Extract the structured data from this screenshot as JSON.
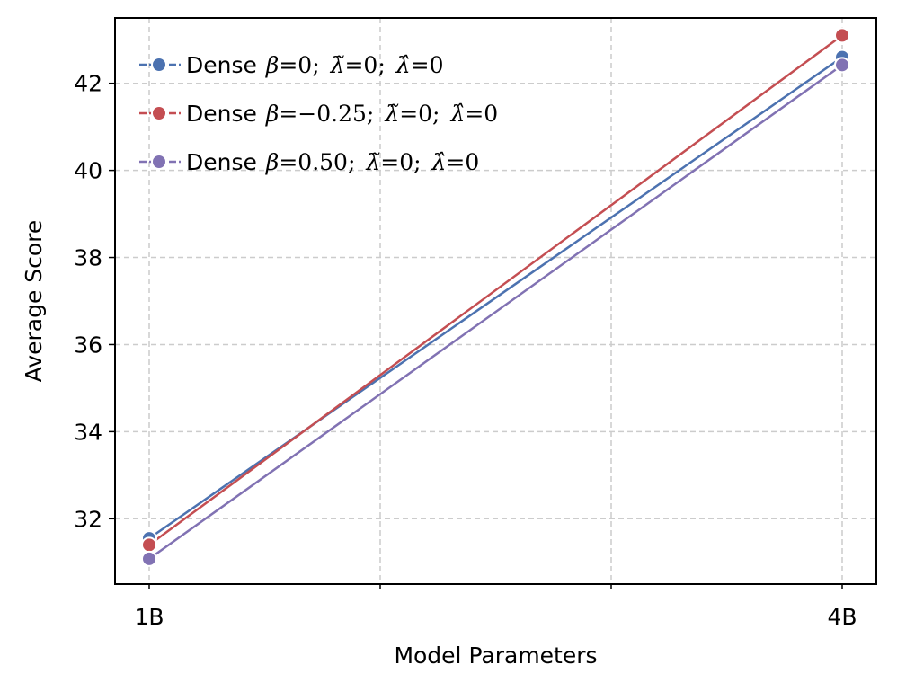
{
  "chart_data": {
    "type": "line",
    "categories": [
      "1B",
      "4B"
    ],
    "series": [
      {
        "name": "Dense β=0; λ̃=0; λ̂=0",
        "legend_prefix": "Dense",
        "beta": "0",
        "values": [
          31.55,
          42.6
        ],
        "color": "#4C72B0"
      },
      {
        "name": "Dense β=−0.25; λ̃=0; λ̂=0",
        "legend_prefix": "Dense",
        "beta": "−0.25",
        "values": [
          31.4,
          43.1
        ],
        "color": "#C44E52"
      },
      {
        "name": "Dense β=0.50; λ̃=0; λ̂=0",
        "legend_prefix": "Dense",
        "beta": "0.50",
        "values": [
          31.08,
          42.42
        ],
        "color": "#8172B3"
      }
    ],
    "xlabel": "Model Parameters",
    "ylabel": "Average Score",
    "yticks": [
      "32",
      "34",
      "36",
      "38",
      "40",
      "42"
    ],
    "ylim": [
      30.5,
      43.5
    ],
    "grid": true,
    "grid_style": "dashed",
    "legend_position": "upper-left"
  }
}
